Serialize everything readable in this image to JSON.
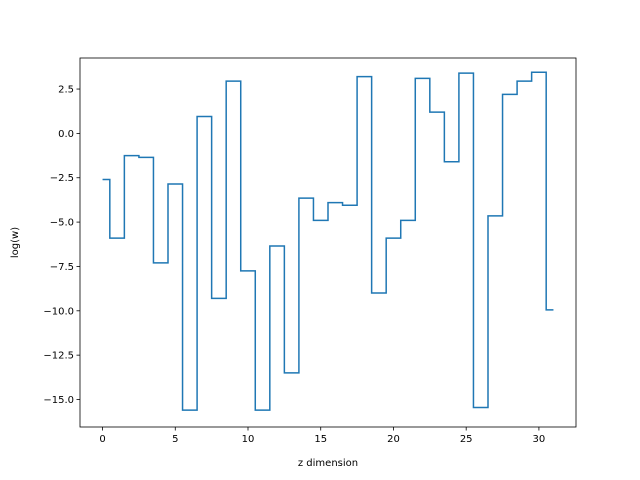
{
  "chart_data": {
    "type": "line",
    "drawstyle": "steps-mid",
    "title": "",
    "xlabel": "z dimension",
    "ylabel": "log(w)",
    "xlim": [
      -1.55,
      32.55
    ],
    "ylim": [
      -16.55,
      4.25
    ],
    "xticks": [
      0,
      5,
      10,
      15,
      20,
      25,
      30
    ],
    "xtick_labels": [
      "0",
      "5",
      "10",
      "15",
      "20",
      "25",
      "30"
    ],
    "yticks": [
      2.5,
      0.0,
      -2.5,
      -5.0,
      -7.5,
      -10.0,
      -12.5,
      -15.0
    ],
    "ytick_labels": [
      "2.5",
      "0.0",
      "−2.5",
      "−5.0",
      "−7.5",
      "−10.0",
      "−12.5",
      "−15.0"
    ],
    "grid": false,
    "color": "#1f77b4",
    "x": [
      0,
      1,
      2,
      3,
      4,
      5,
      6,
      7,
      8,
      9,
      10,
      11,
      12,
      13,
      14,
      15,
      16,
      17,
      18,
      19,
      20,
      21,
      22,
      23,
      24,
      25,
      26,
      27,
      28,
      29,
      30,
      31
    ],
    "y": [
      -2.6,
      -5.9,
      -1.25,
      -1.35,
      -7.3,
      -2.85,
      -15.6,
      0.95,
      -9.3,
      2.95,
      -7.75,
      -15.6,
      -6.35,
      -13.5,
      -3.65,
      -4.9,
      -3.9,
      -4.05,
      3.2,
      -9.0,
      -5.9,
      -4.9,
      3.1,
      1.2,
      -1.6,
      3.4,
      -15.45,
      -4.65,
      2.2,
      2.95,
      3.45,
      -9.95
    ]
  }
}
